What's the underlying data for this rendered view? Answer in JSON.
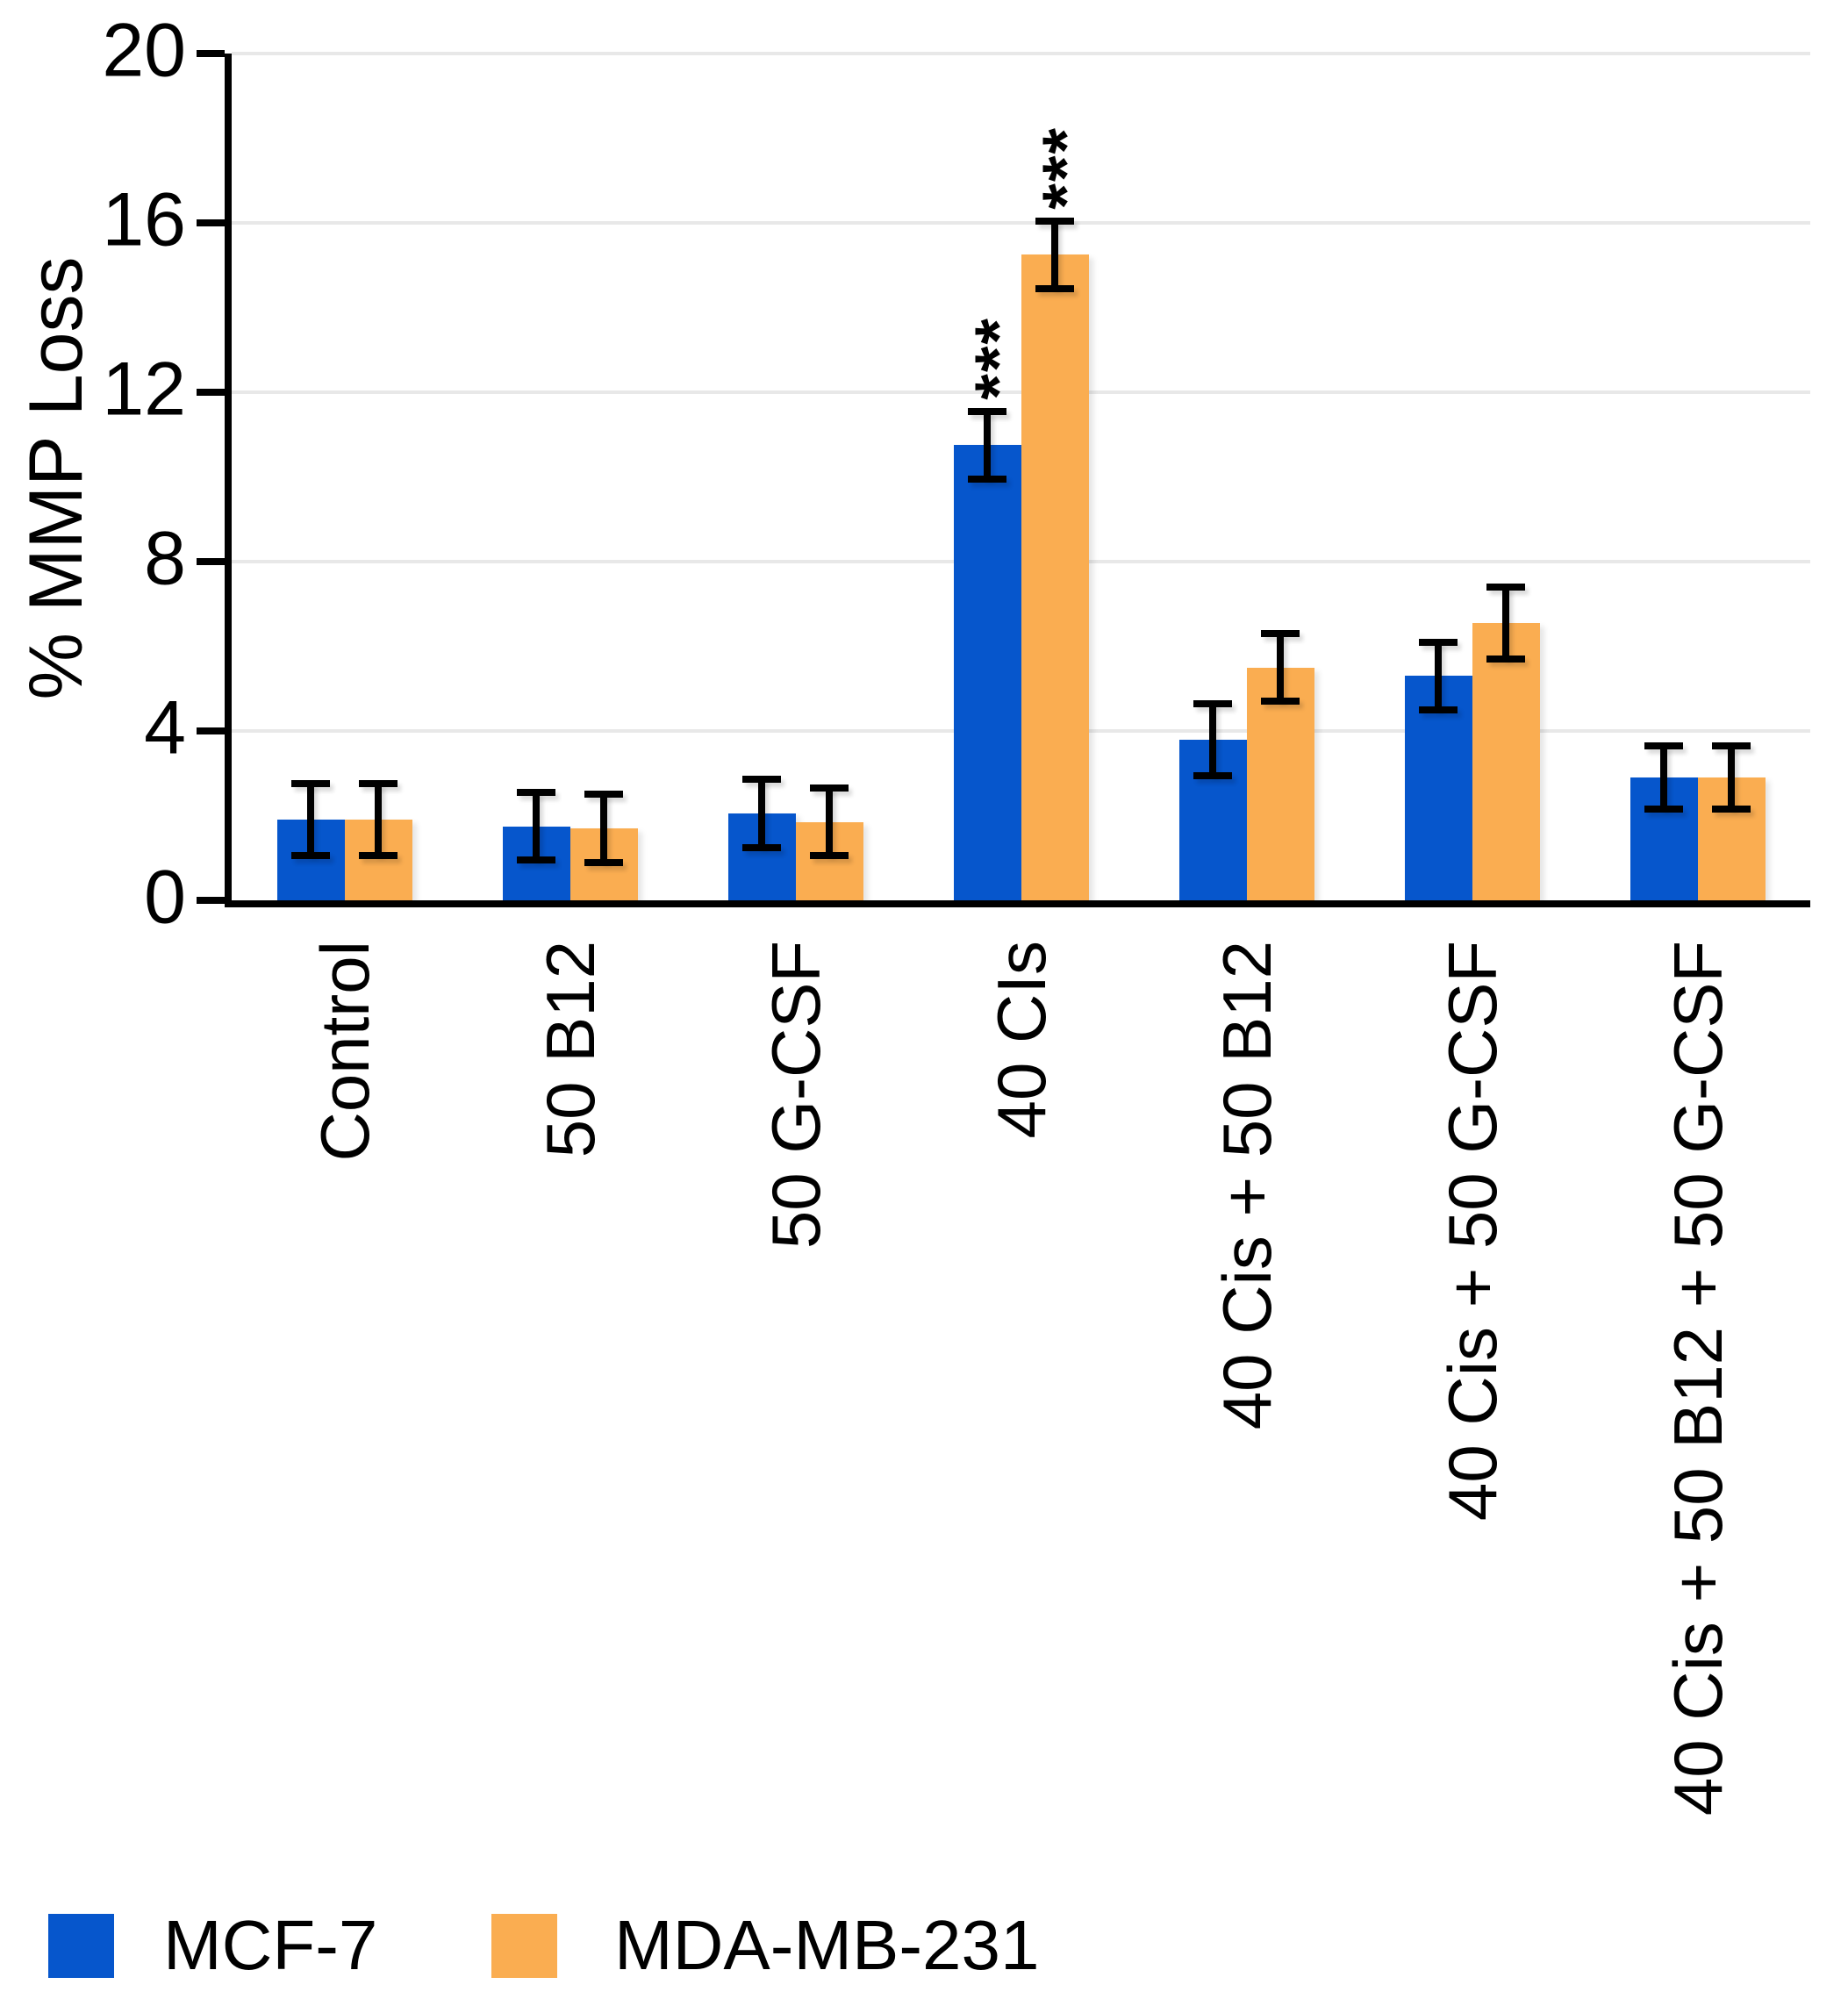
{
  "chart_data": {
    "type": "bar",
    "title": "",
    "ylabel": "% MMP Loss",
    "xlabel": "",
    "ylim": [
      0,
      20
    ],
    "yticks": [
      0,
      4,
      8,
      12,
      16,
      20
    ],
    "grid": "horizontal",
    "legend_position": "bottom-left",
    "categories": [
      "Control",
      "50 B12",
      "50 G-CSF",
      "40 CIs",
      "40 Cis + 50 B12",
      "40 Cis + 50 G-CSF",
      "40 Cis + 50 B12 + 50 G-CSF"
    ],
    "series": [
      {
        "name": "MCF-7",
        "color": "#0656cc",
        "values": [
          1.9,
          1.75,
          2.05,
          10.75,
          3.8,
          5.3,
          2.9
        ],
        "errors": [
          0.85,
          0.8,
          0.8,
          0.8,
          0.85,
          0.8,
          0.75
        ]
      },
      {
        "name": "MDA-MB-231",
        "color": "#faad51",
        "values": [
          1.9,
          1.7,
          1.85,
          15.25,
          5.5,
          6.55,
          2.9
        ],
        "errors": [
          0.85,
          0.8,
          0.8,
          0.8,
          0.8,
          0.85,
          0.75
        ]
      }
    ],
    "annotations": [
      {
        "series_index": 0,
        "category_index": 3,
        "text": "***"
      },
      {
        "series_index": 1,
        "category_index": 3,
        "text": "***"
      }
    ],
    "colors": {
      "axis": "#000000",
      "gridline": "#e8e8e8",
      "text": "#000000",
      "background": "#ffffff"
    }
  }
}
